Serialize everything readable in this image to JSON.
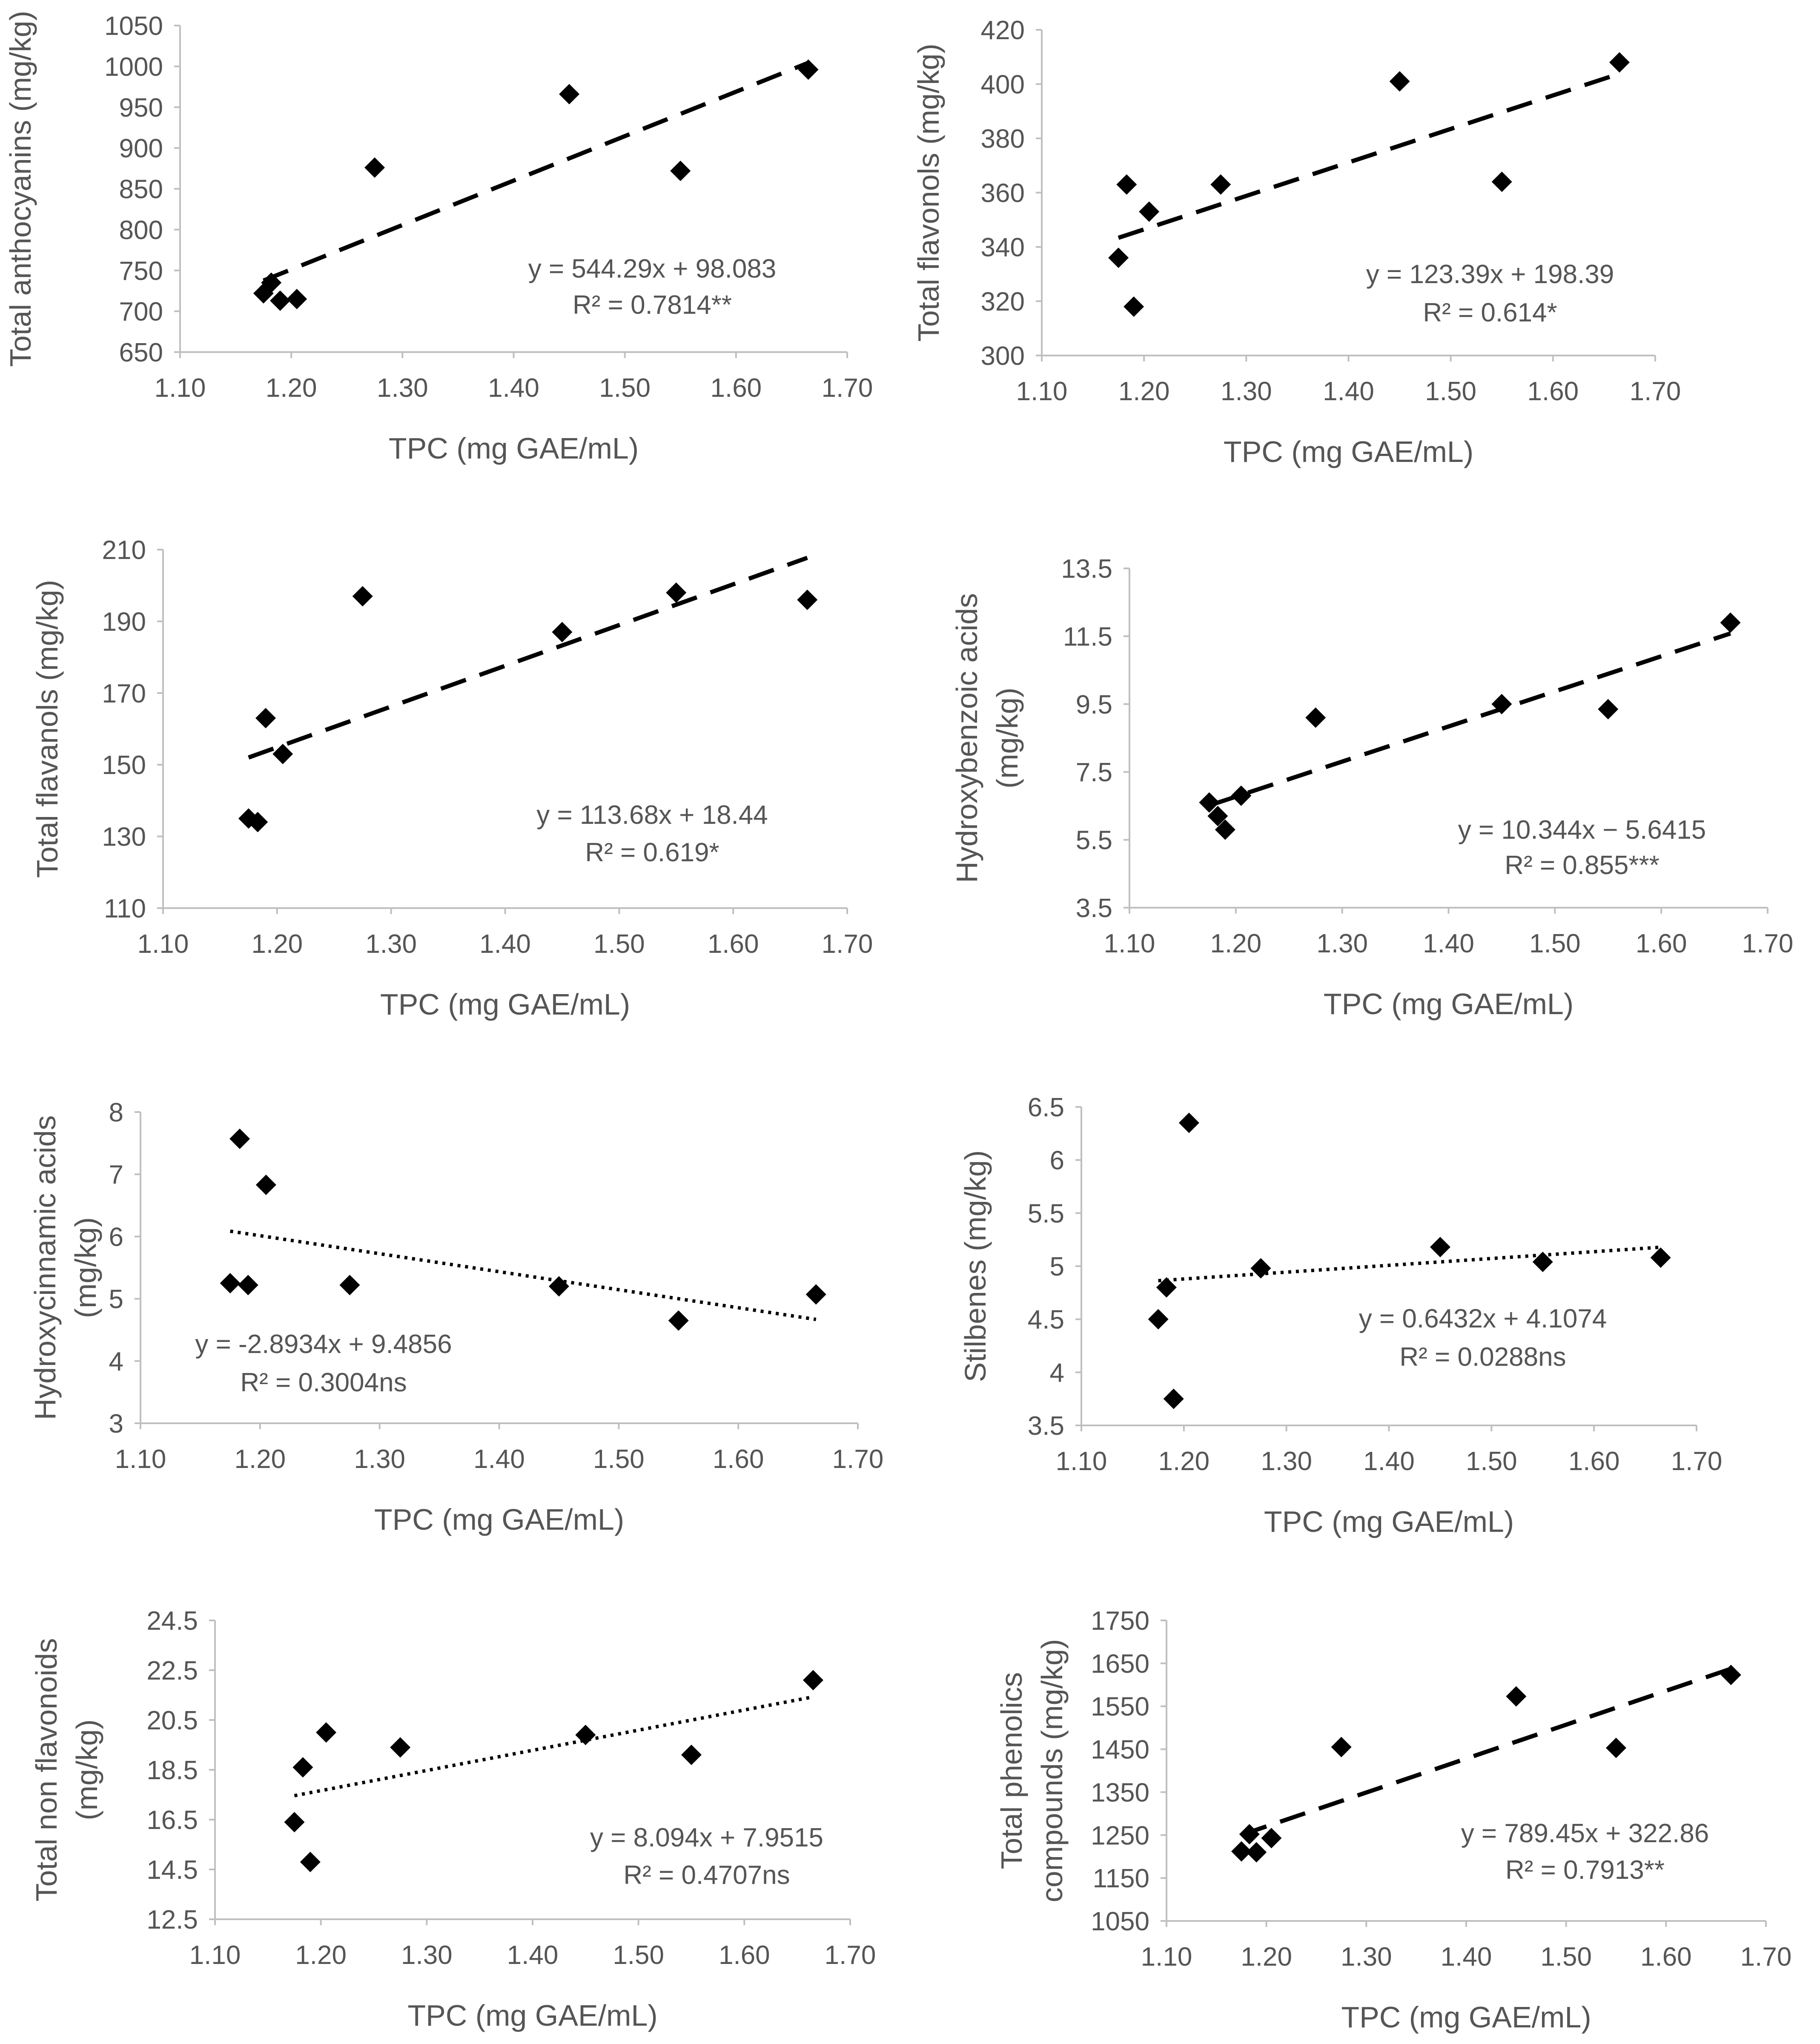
{
  "chart_data": [
    {
      "type": "scatter",
      "ylabel_lines": [
        "Total anthocyanins (mg/kg)"
      ],
      "xlabel": "TPC (mg GAE/mL)",
      "xlim": [
        1.1,
        1.7
      ],
      "ylim": [
        650,
        1050
      ],
      "xticks": [
        "1.10",
        "1.20",
        "1.30",
        "1.40",
        "1.50",
        "1.60",
        "1.70"
      ],
      "yticks": [
        "650",
        "700",
        "750",
        "800",
        "850",
        "900",
        "950",
        "1000",
        "1050"
      ],
      "points": [
        [
          1.175,
          722
        ],
        [
          1.182,
          735
        ],
        [
          1.19,
          713
        ],
        [
          1.205,
          715
        ],
        [
          1.275,
          876
        ],
        [
          1.45,
          966
        ],
        [
          1.55,
          872
        ],
        [
          1.665,
          996
        ]
      ],
      "trendline": {
        "style": "dashed",
        "slope": 544.29,
        "intercept": 98.083,
        "x_range": [
          1.175,
          1.665
        ]
      },
      "equation": "y = 544.29x + 98.083",
      "r2": "R² = 0.7814**"
    },
    {
      "type": "scatter",
      "ylabel_lines": [
        "Total flavonols (mg/kg)"
      ],
      "xlabel": "TPC (mg GAE/mL)",
      "xlim": [
        1.1,
        1.7
      ],
      "ylim": [
        300,
        420
      ],
      "xticks": [
        "1.10",
        "1.20",
        "1.30",
        "1.40",
        "1.50",
        "1.60",
        "1.70"
      ],
      "yticks": [
        "300",
        "320",
        "340",
        "360",
        "380",
        "400",
        "420"
      ],
      "points": [
        [
          1.175,
          336
        ],
        [
          1.183,
          363
        ],
        [
          1.19,
          318
        ],
        [
          1.205,
          353
        ],
        [
          1.275,
          363
        ],
        [
          1.45,
          401
        ],
        [
          1.55,
          364
        ],
        [
          1.665,
          408
        ]
      ],
      "trendline": {
        "style": "dashed",
        "slope": 123.39,
        "intercept": 198.39,
        "x_range": [
          1.175,
          1.665
        ]
      },
      "equation": "y = 123.39x + 198.39",
      "r2": "R² = 0.614*"
    },
    {
      "type": "scatter",
      "ylabel_lines": [
        "Total flavanols (mg/kg)"
      ],
      "xlabel": "TPC (mg GAE/mL)",
      "xlim": [
        1.1,
        1.7
      ],
      "ylim": [
        110,
        210
      ],
      "xticks": [
        "1.10",
        "1.20",
        "1.30",
        "1.40",
        "1.50",
        "1.60",
        "1.70"
      ],
      "yticks": [
        "110",
        "130",
        "150",
        "170",
        "190",
        "210"
      ],
      "points": [
        [
          1.175,
          135
        ],
        [
          1.183,
          134
        ],
        [
          1.19,
          163
        ],
        [
          1.205,
          153
        ],
        [
          1.275,
          197
        ],
        [
          1.45,
          187
        ],
        [
          1.55,
          198
        ],
        [
          1.665,
          196
        ]
      ],
      "trendline": {
        "style": "dashed",
        "slope": 113.68,
        "intercept": 18.44,
        "x_range": [
          1.175,
          1.665
        ]
      },
      "equation": "y = 113.68x + 18.44",
      "r2": "R² = 0.619*"
    },
    {
      "type": "scatter",
      "ylabel_lines": [
        "Hydroxybenzoic acids",
        "(mg/kg)"
      ],
      "xlabel": "TPC (mg GAE/mL)",
      "xlim": [
        1.1,
        1.7
      ],
      "ylim": [
        3.5,
        13.5
      ],
      "xticks": [
        "1.10",
        "1.20",
        "1.30",
        "1.40",
        "1.50",
        "1.60",
        "1.70"
      ],
      "yticks": [
        "3.5",
        "5.5",
        "7.5",
        "9.5",
        "11.5",
        "13.5"
      ],
      "points": [
        [
          1.175,
          6.6
        ],
        [
          1.183,
          6.2
        ],
        [
          1.19,
          5.8
        ],
        [
          1.205,
          6.8
        ],
        [
          1.275,
          9.1
        ],
        [
          1.45,
          9.5
        ],
        [
          1.55,
          9.35
        ],
        [
          1.665,
          11.9
        ]
      ],
      "trendline": {
        "style": "dashed",
        "slope": 10.344,
        "intercept": -5.6415,
        "x_range": [
          1.175,
          1.665
        ]
      },
      "equation": "y = 10.344x − 5.6415",
      "r2": "R² = 0.855***"
    },
    {
      "type": "scatter",
      "ylabel_lines": [
        "Hydroxycinnamic acids",
        "(mg/kg)"
      ],
      "xlabel": "TPC (mg GAE/mL)",
      "xlim": [
        1.1,
        1.7
      ],
      "ylim": [
        3,
        8
      ],
      "xticks": [
        "1.10",
        "1.20",
        "1.30",
        "1.40",
        "1.50",
        "1.60",
        "1.70"
      ],
      "yticks": [
        "3",
        "4",
        "5",
        "6",
        "7",
        "8"
      ],
      "points": [
        [
          1.175,
          5.25
        ],
        [
          1.183,
          7.57
        ],
        [
          1.19,
          5.22
        ],
        [
          1.205,
          6.83
        ],
        [
          1.275,
          5.22
        ],
        [
          1.45,
          5.2
        ],
        [
          1.55,
          4.65
        ],
        [
          1.665,
          5.07
        ]
      ],
      "trendline": {
        "style": "dotted",
        "slope": -2.8934,
        "intercept": 9.4856,
        "x_range": [
          1.175,
          1.665
        ]
      },
      "equation": "y = -2.8934x + 9.4856",
      "r2": "R² = 0.3004ns"
    },
    {
      "type": "scatter",
      "ylabel_lines": [
        "Stilbenes (mg/kg)"
      ],
      "xlabel": "TPC (mg GAE/mL)",
      "xlim": [
        1.1,
        1.7
      ],
      "ylim": [
        3.5,
        6.5
      ],
      "xticks": [
        "1.10",
        "1.20",
        "1.30",
        "1.40",
        "1.50",
        "1.60",
        "1.70"
      ],
      "yticks": [
        "3.5",
        "4",
        "4.5",
        "5",
        "5.5",
        "6",
        "6.5"
      ],
      "points": [
        [
          1.175,
          4.5
        ],
        [
          1.183,
          4.8
        ],
        [
          1.19,
          3.75
        ],
        [
          1.205,
          6.35
        ],
        [
          1.275,
          4.98
        ],
        [
          1.45,
          5.18
        ],
        [
          1.55,
          5.04
        ],
        [
          1.665,
          5.08
        ]
      ],
      "trendline": {
        "style": "dotted",
        "slope": 0.6432,
        "intercept": 4.1074,
        "x_range": [
          1.175,
          1.665
        ]
      },
      "equation": "y = 0.6432x + 4.1074",
      "r2": "R² = 0.0288ns"
    },
    {
      "type": "scatter",
      "ylabel_lines": [
        "Total non flavonoids",
        "(mg/kg)"
      ],
      "xlabel": "TPC (mg GAE/mL)",
      "xlim": [
        1.1,
        1.7
      ],
      "ylim": [
        12.5,
        24.5
      ],
      "xticks": [
        "1.10",
        "1.20",
        "1.30",
        "1.40",
        "1.50",
        "1.60",
        "1.70"
      ],
      "yticks": [
        "12.5",
        "14.5",
        "16.5",
        "18.5",
        "20.5",
        "22.5",
        "24.5"
      ],
      "points": [
        [
          1.175,
          16.4
        ],
        [
          1.183,
          18.6
        ],
        [
          1.19,
          14.8
        ],
        [
          1.205,
          20
        ],
        [
          1.275,
          19.4
        ],
        [
          1.45,
          19.9
        ],
        [
          1.55,
          19.1
        ],
        [
          1.665,
          22.1
        ]
      ],
      "trendline": {
        "style": "dotted",
        "slope": 8.094,
        "intercept": 7.9515,
        "x_range": [
          1.175,
          1.665
        ]
      },
      "equation": "y = 8.094x + 7.9515",
      "r2": "R² = 0.4707ns"
    },
    {
      "type": "scatter",
      "ylabel_lines": [
        "Total phenolics",
        "compounds (mg/kg)"
      ],
      "xlabel": "TPC (mg GAE/mL)",
      "xlim": [
        1.1,
        1.7
      ],
      "ylim": [
        1050,
        1750
      ],
      "xticks": [
        "1.10",
        "1.20",
        "1.30",
        "1.40",
        "1.50",
        "1.60",
        "1.70"
      ],
      "yticks": [
        "1050",
        "1150",
        "1250",
        "1350",
        "1450",
        "1550",
        "1650",
        "1750"
      ],
      "points": [
        [
          1.175,
          1212
        ],
        [
          1.183,
          1252
        ],
        [
          1.19,
          1210
        ],
        [
          1.205,
          1243
        ],
        [
          1.275,
          1455
        ],
        [
          1.45,
          1573
        ],
        [
          1.55,
          1453
        ],
        [
          1.665,
          1623
        ]
      ],
      "trendline": {
        "style": "dashed",
        "slope": 789.45,
        "intercept": 322.86,
        "x_range": [
          1.175,
          1.665
        ]
      },
      "equation": "y = 789.45x + 322.86",
      "r2": "R² = 0.7913**"
    }
  ]
}
